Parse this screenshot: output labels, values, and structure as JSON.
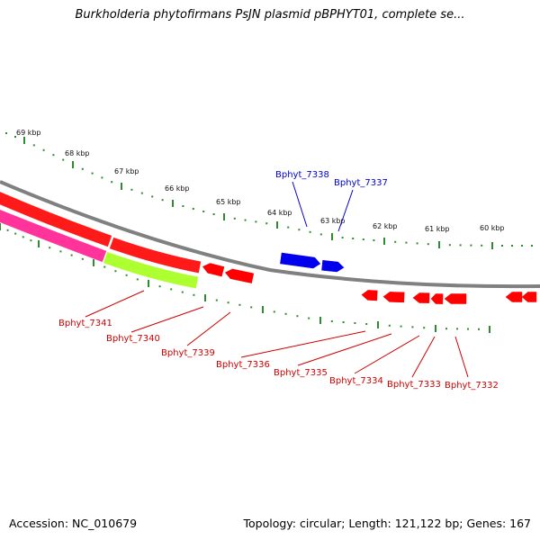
{
  "title": "Burkholderia phytofirmans PsJN plasmid pBPHYT01, complete se...",
  "footer": {
    "accession": "Accession: NC_010679",
    "summary": "Topology: circular; Length: 121,122 bp; Genes: 167"
  },
  "colors": {
    "backbone": "#808080",
    "tick": "#2e8b2e",
    "forward_gene": "#0000ee",
    "reverse_gene": "#ff0000",
    "forward_label": "#0000cc",
    "reverse_label": "#cc0000",
    "track_red": "#ff1a1a",
    "track_magenta": "#ff3399",
    "track_green": "#adff2f"
  },
  "kbp_ticks": [
    {
      "kbp": 69,
      "label": "69 kbp"
    },
    {
      "kbp": 68,
      "label": "68 kbp"
    },
    {
      "kbp": 67,
      "label": "67 kbp"
    },
    {
      "kbp": 66,
      "label": "66 kbp"
    },
    {
      "kbp": 65,
      "label": "65 kbp"
    },
    {
      "kbp": 64,
      "label": "64 kbp"
    },
    {
      "kbp": 63,
      "label": "63 kbp"
    },
    {
      "kbp": 62,
      "label": "62 kbp"
    },
    {
      "kbp": 61,
      "label": "61 kbp"
    },
    {
      "kbp": 60,
      "label": "60 kbp"
    }
  ],
  "gene_labels": [
    {
      "id": "Bphyt_7338",
      "text": "Bphyt_7338",
      "strand": "forward"
    },
    {
      "id": "Bphyt_7337",
      "text": "Bphyt_7337",
      "strand": "forward"
    },
    {
      "id": "Bphyt_7341",
      "text": "Bphyt_7341",
      "strand": "reverse"
    },
    {
      "id": "Bphyt_7340",
      "text": "Bphyt_7340",
      "strand": "reverse"
    },
    {
      "id": "Bphyt_7339",
      "text": "Bphyt_7339",
      "strand": "reverse"
    },
    {
      "id": "Bphyt_7336",
      "text": "Bphyt_7336",
      "strand": "reverse"
    },
    {
      "id": "Bphyt_7335",
      "text": "Bphyt_7335",
      "strand": "reverse"
    },
    {
      "id": "Bphyt_7334",
      "text": "Bphyt_7334",
      "strand": "reverse"
    },
    {
      "id": "Bphyt_7333",
      "text": "Bphyt_7333",
      "strand": "reverse"
    },
    {
      "id": "Bphyt_7332",
      "text": "Bphyt_7332",
      "strand": "reverse"
    }
  ]
}
